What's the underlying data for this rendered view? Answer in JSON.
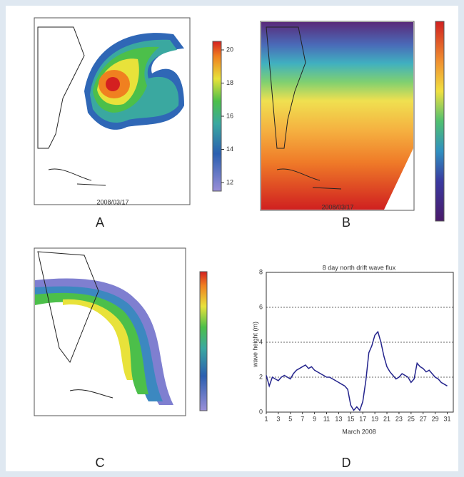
{
  "panels": [
    {
      "label": "A",
      "date": "2008/03/17",
      "colorbar_ticks": [
        20,
        18,
        16,
        14,
        12
      ]
    },
    {
      "label": "B",
      "date": "2008/03/17"
    },
    {
      "label": "C"
    }
  ],
  "chart_data": {
    "type": "line",
    "label": "D",
    "title": "8 day north drift wave flux",
    "x_label": "March 2008",
    "y_label": "wave height (m)",
    "x": [
      1,
      1.5,
      2,
      2.5,
      3,
      3.5,
      4,
      4.5,
      5,
      5.5,
      6,
      6.5,
      7,
      7.5,
      8,
      8.5,
      9,
      9.5,
      10,
      10.5,
      11,
      11.5,
      12,
      12.5,
      13,
      13.5,
      14,
      14.5,
      15,
      15.5,
      16,
      16.5,
      17,
      17.5,
      18,
      18.5,
      19,
      19.5,
      20,
      20.5,
      21,
      21.5,
      22,
      22.5,
      23,
      23.5,
      24,
      24.5,
      25,
      25.5,
      26,
      26.5,
      27,
      27.5,
      28,
      28.5,
      29,
      29.5,
      30,
      30.5,
      31
    ],
    "series": [
      {
        "color": "#23238c",
        "values": [
          2.1,
          1.5,
          2.0,
          1.9,
          1.8,
          2.0,
          2.1,
          2.0,
          1.9,
          2.2,
          2.4,
          2.5,
          2.6,
          2.7,
          2.5,
          2.6,
          2.4,
          2.3,
          2.2,
          2.1,
          2.0,
          2.0,
          1.9,
          1.8,
          1.7,
          1.6,
          1.5,
          1.3,
          0.4,
          0.1,
          0.3,
          0.1,
          0.6,
          1.8,
          3.4,
          3.8,
          4.4,
          4.6,
          4.0,
          3.2,
          2.6,
          2.3,
          2.1,
          1.9,
          2.0,
          2.2,
          2.1,
          2.0,
          1.7,
          1.9,
          2.8,
          2.6,
          2.5,
          2.3,
          2.4,
          2.2,
          2.0,
          1.9,
          1.7,
          1.6,
          1.5
        ]
      }
    ],
    "xlim": [
      1,
      32
    ],
    "xticks": [
      1,
      3,
      5,
      7,
      9,
      11,
      13,
      15,
      17,
      19,
      21,
      23,
      25,
      27,
      29,
      31
    ],
    "ylim": [
      0,
      8
    ],
    "yticks": [
      0,
      2,
      4,
      6,
      8
    ],
    "grid": true
  }
}
